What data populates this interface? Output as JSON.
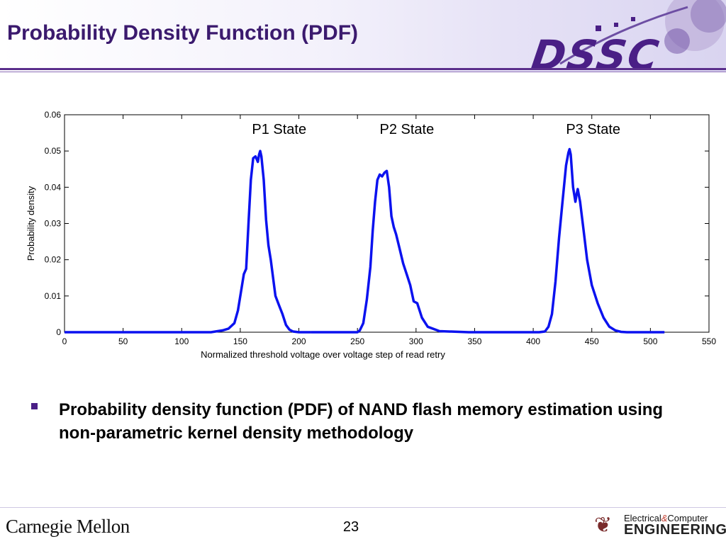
{
  "slide": {
    "title": "Probability Density Function (PDF)",
    "logo_text": "DSSC",
    "bullet_text": "Probability density function (PDF) of NAND flash memory estimation using non-parametric kernel density methodology",
    "footer_left": "Carnegie Mellon",
    "page_number": "23",
    "footer_right_line1_a": "Electrical",
    "footer_right_amp": "&",
    "footer_right_line1_b": "Computer",
    "footer_right_line2": "ENGINEERING"
  },
  "colors": {
    "accent": "#4a1f86",
    "series": "#0b12ef"
  },
  "chart_data": {
    "type": "line",
    "title": "",
    "xlabel": "Normalized threshold voltage over voltage step of read retry",
    "ylabel": "Probability density",
    "xlim": [
      0,
      550
    ],
    "ylim": [
      0,
      0.06
    ],
    "xticks": [
      "0",
      "50",
      "100",
      "150",
      "200",
      "250",
      "300",
      "350",
      "400",
      "450",
      "500",
      "550"
    ],
    "yticks": [
      "0",
      "0.01",
      "0.02",
      "0.03",
      "0.04",
      "0.05",
      "0.06"
    ],
    "grid": false,
    "annotations": [
      {
        "text": "P1 State",
        "x": 162,
        "y": 0.0545
      },
      {
        "text": "P2 State",
        "x": 271,
        "y": 0.0545
      },
      {
        "text": "P3 State",
        "x": 430,
        "y": 0.0545
      }
    ],
    "series": [
      {
        "name": "",
        "color": "#0b12ef",
        "segments": [
          {
            "x": [
              0,
              50,
              100,
              105
            ],
            "y": [
              0,
              0,
              0,
              0
            ]
          },
          {
            "x": [
              105,
              125,
              135,
              140,
              145,
              148,
              151,
              153,
              155,
              157,
              159,
              161,
              163,
              165,
              166,
              167,
              168,
              170,
              172,
              174,
              176,
              178,
              180,
              183,
              186,
              189,
              192,
              195,
              200,
              210
            ],
            "y": [
              0,
              0,
              0.0005,
              0.001,
              0.0025,
              0.006,
              0.012,
              0.016,
              0.0175,
              0.03,
              0.042,
              0.048,
              0.0485,
              0.047,
              0.049,
              0.05,
              0.0485,
              0.042,
              0.031,
              0.024,
              0.02,
              0.015,
              0.01,
              0.0075,
              0.005,
              0.002,
              0.0007,
              0.0002,
              0,
              0
            ]
          },
          {
            "x": [
              210,
              230,
              245,
              250,
              252,
              255,
              258,
              261,
              263,
              265,
              267,
              269,
              271,
              273,
              275,
              277,
              279,
              281,
              283,
              286,
              289,
              292,
              295,
              298,
              301,
              305,
              310,
              320,
              345,
              370
            ],
            "y": [
              0,
              0,
              0,
              0,
              0.0005,
              0.0025,
              0.009,
              0.018,
              0.028,
              0.036,
              0.042,
              0.0435,
              0.043,
              0.044,
              0.0445,
              0.04,
              0.032,
              0.029,
              0.027,
              0.023,
              0.019,
              0.016,
              0.013,
              0.0085,
              0.008,
              0.004,
              0.0015,
              0.0003,
              0,
              0
            ]
          },
          {
            "x": [
              370,
              395,
              405,
              410,
              413,
              416,
              419,
              422,
              425,
              428,
              430,
              431,
              432,
              434,
              436,
              437,
              438,
              440,
              443,
              446,
              450,
              455,
              460,
              465,
              470,
              475,
              480,
              490,
              500,
              512
            ],
            "y": [
              0,
              0,
              0,
              0.0002,
              0.0015,
              0.005,
              0.014,
              0.026,
              0.036,
              0.046,
              0.0495,
              0.0505,
              0.049,
              0.04,
              0.036,
              0.038,
              0.0395,
              0.036,
              0.028,
              0.02,
              0.013,
              0.008,
              0.004,
              0.0015,
              0.0005,
              0.0001,
              0,
              0,
              0,
              0
            ]
          }
        ]
      }
    ]
  }
}
